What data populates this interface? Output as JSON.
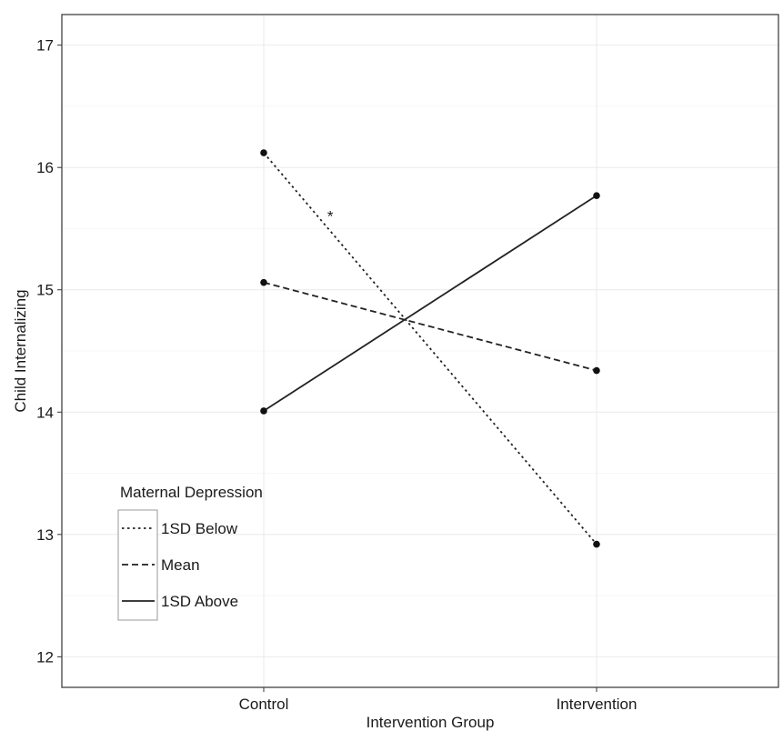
{
  "chart_data": {
    "type": "line",
    "xlabel": "Intervention Group",
    "ylabel": "Child Internalizing",
    "categories": [
      "Control",
      "Intervention"
    ],
    "ylim": [
      11.75,
      17.25
    ],
    "yticks": [
      12,
      13,
      14,
      15,
      16,
      17
    ],
    "ytick_labels": [
      "12",
      "13",
      "14",
      "15",
      "16",
      "17"
    ],
    "grid": true,
    "legend": {
      "title": "Maternal Depression",
      "position": "bottom-left"
    },
    "series": [
      {
        "name": "1SD Below",
        "linestyle": "dotted",
        "values": [
          16.12,
          12.92
        ]
      },
      {
        "name": "Mean",
        "linestyle": "dashed",
        "values": [
          15.06,
          14.34
        ]
      },
      {
        "name": "1SD Above",
        "linestyle": "solid",
        "values": [
          14.01,
          15.77
        ]
      }
    ],
    "annotations": [
      {
        "text": "*",
        "x": 0.2,
        "y": 15.62
      }
    ],
    "colors": {
      "line": "#222222",
      "grid": "#ebebeb",
      "border": "#333333"
    }
  }
}
